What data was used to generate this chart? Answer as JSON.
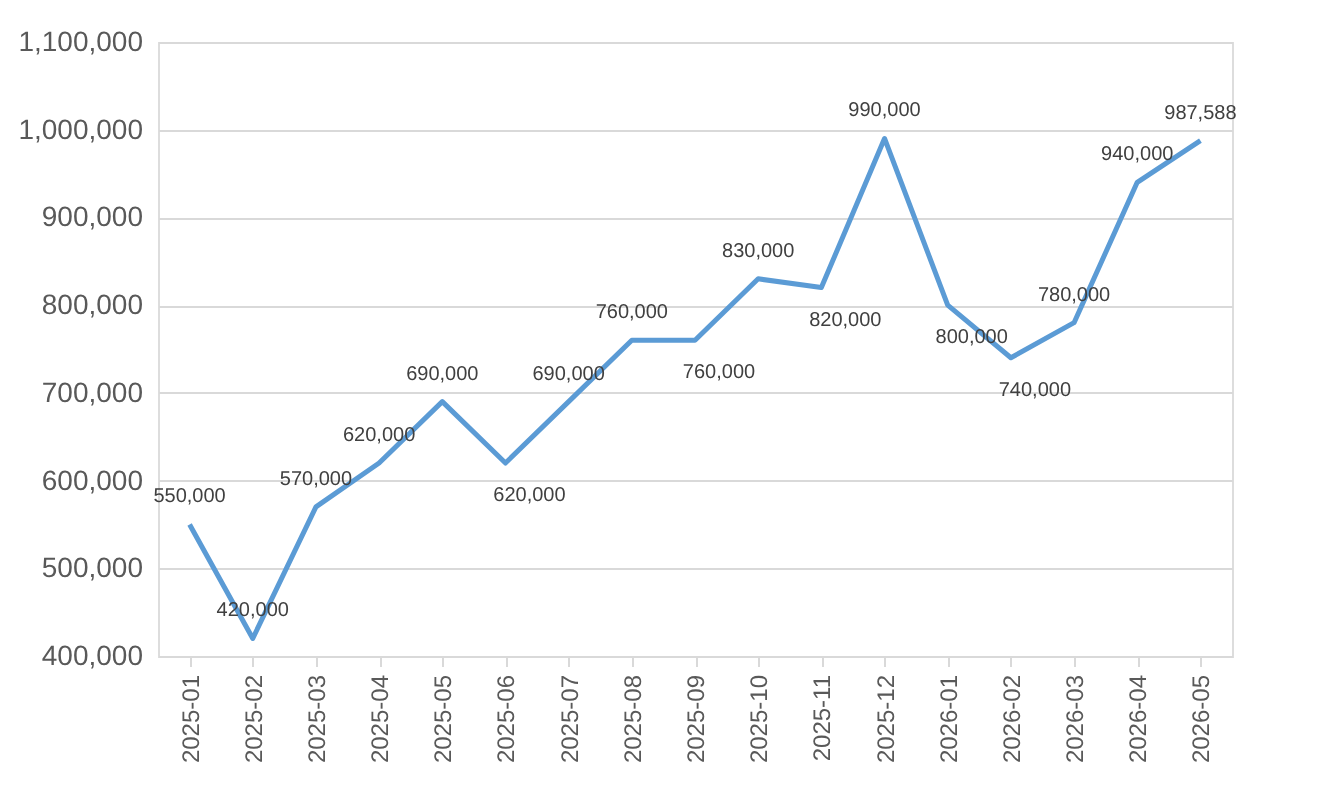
{
  "chart_data": {
    "type": "line",
    "categories": [
      "2025-01",
      "2025-02",
      "2025-03",
      "2025-04",
      "2025-05",
      "2025-06",
      "2025-07",
      "2025-08",
      "2025-09",
      "2025-10",
      "2025-11",
      "2025-12",
      "2026-01",
      "2026-02",
      "2026-03",
      "2026-04",
      "2026-05"
    ],
    "series": [
      {
        "color": "#5b9bd5",
        "values": [
          550000,
          420000,
          570000,
          620000,
          690000,
          620000,
          690000,
          760000,
          760000,
          830000,
          820000,
          990000,
          800000,
          740000,
          780000,
          940000,
          987588
        ],
        "value_labels": [
          "550,000",
          "420,000",
          "570,000",
          "620,000",
          "690,000",
          "620,000",
          "690,000",
          "760,000",
          "760,000",
          "830,000",
          "820,000",
          "990,000",
          "800,000",
          "740,000",
          "780,000",
          "940,000",
          "987,588"
        ]
      }
    ],
    "ylim": [
      400000,
      1100000
    ],
    "yticks": [
      {
        "value": 400000,
        "label": "400,000"
      },
      {
        "value": 500000,
        "label": "500,000"
      },
      {
        "value": 600000,
        "label": "600,000"
      },
      {
        "value": 700000,
        "label": "700,000"
      },
      {
        "value": 800000,
        "label": "800,000"
      },
      {
        "value": 900000,
        "label": "900,000"
      },
      {
        "value": 1000000,
        "label": "1,000,000"
      },
      {
        "value": 1100000,
        "label": "1,100,000"
      }
    ],
    "grid": "y",
    "marker": "none",
    "line_style": "solid"
  }
}
